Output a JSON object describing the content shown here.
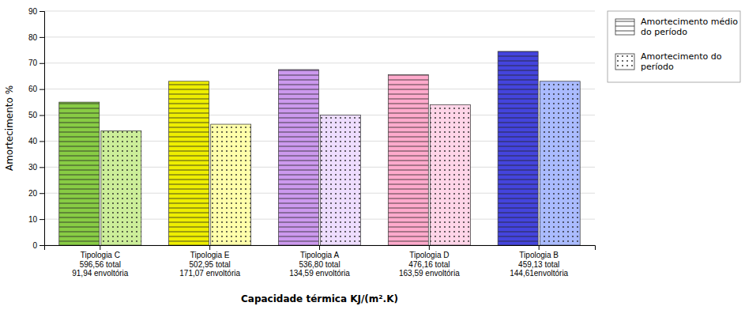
{
  "chart_data": {
    "type": "bar",
    "categories": [
      "Tipologia  C\n596,56 total\n91,94 envoltória",
      "Tipologia  E\n502,95 total\n171,07 envoltória",
      "Tipologia  A\n536,80 total\n134,59 envoltória",
      "Tipologia  D\n476,16 total\n163,59 envoltória",
      "Tipologia  B\n459,13 total\n144,61envoltória"
    ],
    "series": [
      {
        "name": "Amortecimento médio\ndo período",
        "colors": [
          "#88cc44",
          "#eeee00",
          "#cc99ee",
          "#ffaacc",
          "#4444dd"
        ],
        "values": [
          55.0,
          63.0,
          67.5,
          65.5,
          74.5
        ]
      },
      {
        "name": "Amortecimento do\nperíodo",
        "colors": [
          "#ccee99",
          "#ffffaa",
          "#eeddff",
          "#ffd5e8",
          "#aabbff"
        ],
        "values": [
          44.0,
          46.5,
          50.0,
          54.0,
          63.0
        ]
      }
    ],
    "xlabel": "Capacidade térmica  KJ/(m².K)",
    "ylabel": "Amortecimento %",
    "ylim": [
      0,
      90
    ],
    "yticks": [
      0,
      10,
      20,
      30,
      40,
      50,
      60,
      70,
      80,
      90
    ],
    "grid": true,
    "legend": "right"
  }
}
